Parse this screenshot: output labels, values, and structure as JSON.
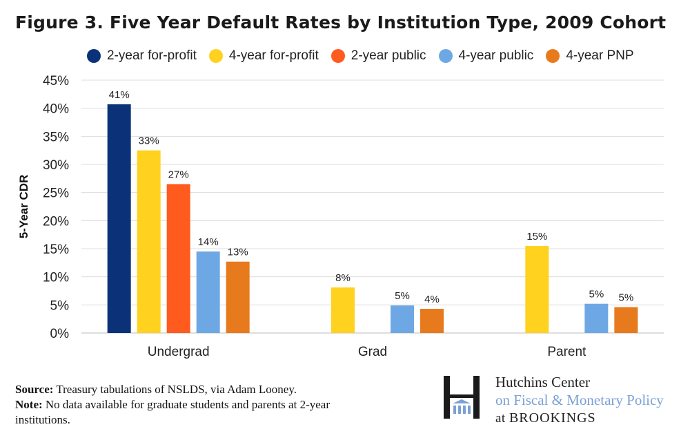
{
  "chart_data": {
    "type": "bar",
    "title": "Figure 3. Five Year Default Rates by Institution Type, 2009 Cohort",
    "xlabel": "",
    "ylabel": "5-Year CDR",
    "ylim": [
      0,
      45
    ],
    "yticks": [
      "0%",
      "5%",
      "10%",
      "15%",
      "20%",
      "25%",
      "30%",
      "35%",
      "40%",
      "45%"
    ],
    "grid": true,
    "legend_position": "top",
    "categories": [
      "Undergrad",
      "Grad",
      "Parent"
    ],
    "series": [
      {
        "name": "2-year for-profit",
        "color": "#0b3278",
        "values": [
          40.7,
          null,
          null
        ],
        "labels": [
          "41%",
          null,
          null
        ]
      },
      {
        "name": "4-year for-profit",
        "color": "#ffd21f",
        "values": [
          32.5,
          8.1,
          15.5
        ],
        "labels": [
          "33%",
          "8%",
          "15%"
        ]
      },
      {
        "name": "2-year public",
        "color": "#ff5b1f",
        "values": [
          26.5,
          null,
          null
        ],
        "labels": [
          "27%",
          null,
          null
        ]
      },
      {
        "name": "4-year public",
        "color": "#6ea8e4",
        "values": [
          14.5,
          4.9,
          5.2
        ],
        "labels": [
          "14%",
          "5%",
          "5%"
        ]
      },
      {
        "name": "4-year PNP",
        "color": "#e87a1e",
        "values": [
          12.7,
          4.3,
          4.6
        ],
        "labels": [
          "13%",
          "4%",
          "5%"
        ]
      }
    ]
  },
  "footer": {
    "source_label": "Source:",
    "source_text": "Treasury tabulations of NSLDS, via Adam Looney.",
    "note_label": "Note:",
    "note_text": "No data available for graduate students and parents at 2-year institutions."
  },
  "logo": {
    "line1": "Hutchins Center",
    "line2": "on Fiscal & Monetary Policy",
    "line3_prefix": "at",
    "line3_brand": "BROOKINGS",
    "colors": {
      "mark": "#1a1a1a",
      "accent": "#7ba1d4"
    }
  }
}
